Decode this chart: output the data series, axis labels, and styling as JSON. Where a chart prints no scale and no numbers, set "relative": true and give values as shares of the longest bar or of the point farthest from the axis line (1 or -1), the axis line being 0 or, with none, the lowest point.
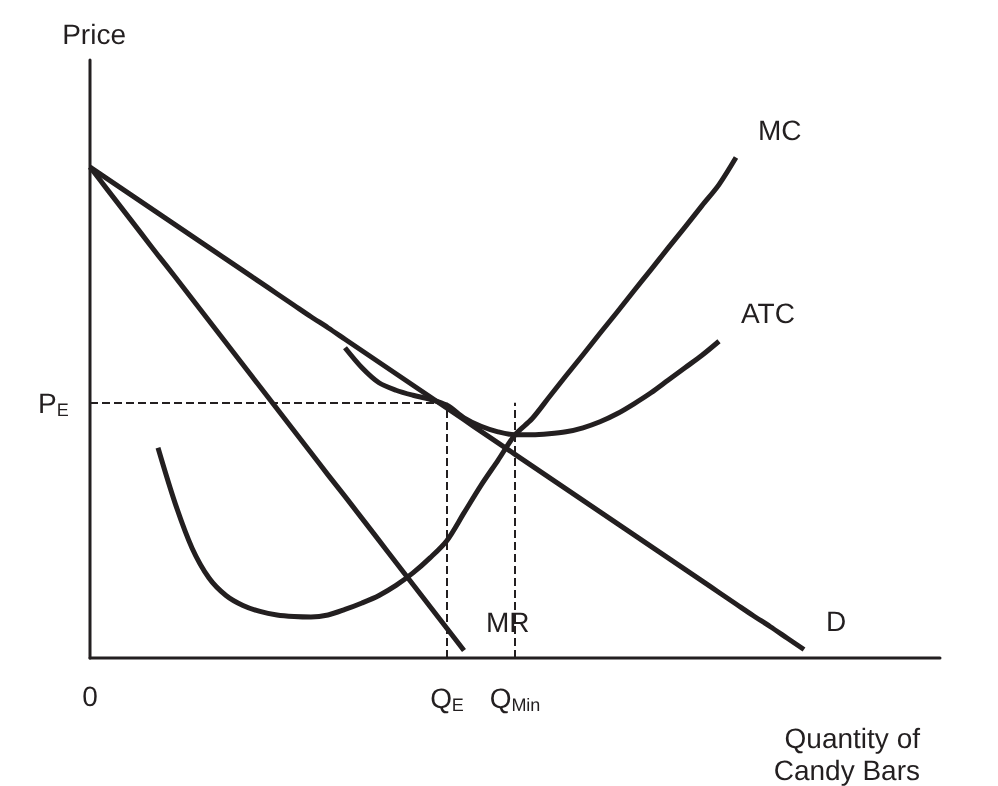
{
  "chart_data": {
    "type": "line",
    "relative": true,
    "ylabel": "Price",
    "xlabel": "Quantity of\nCandy Bars",
    "categories": [
      "0",
      null,
      null,
      null,
      null,
      null,
      null,
      null,
      null,
      null,
      null,
      null,
      null,
      null,
      null,
      null,
      null,
      null,
      null,
      null,
      null,
      "Q$_{E}$",
      null,
      null,
      null,
      "Q$_{Min}$",
      null,
      null,
      null,
      null,
      null,
      null,
      null,
      null,
      null,
      null,
      null,
      null,
      null,
      null,
      null,
      null,
      null,
      null,
      null,
      null,
      null,
      null,
      null,
      null,
      null
    ],
    "series": [
      {
        "name": "MC",
        "color": "#231f20",
        "values": [
          null,
          null,
          null,
          null,
          0.42,
          0.31,
          0.22,
          0.16,
          0.125,
          0.105,
          0.093,
          0.086,
          0.083,
          0.082,
          0.086,
          0.097,
          0.11,
          0.125,
          0.145,
          0.17,
          0.2,
          0.235,
          0.29,
          0.345,
          0.395,
          0.446,
          0.478,
          0.521,
          0.564,
          0.606,
          0.649,
          0.691,
          0.734,
          0.776,
          0.819,
          0.861,
          0.904,
          0.946,
          1.0,
          null,
          null,
          null,
          null,
          null,
          null,
          null,
          null,
          null,
          null,
          null,
          null
        ]
      },
      {
        "name": "ATC",
        "color": "#231f20",
        "values": [
          null,
          null,
          null,
          null,
          null,
          null,
          null,
          null,
          null,
          null,
          null,
          null,
          null,
          null,
          null,
          0.62,
          0.58,
          0.55,
          0.535,
          0.525,
          0.517,
          0.505,
          0.48,
          0.463,
          0.452,
          0.446,
          0.446,
          0.448,
          0.452,
          0.46,
          0.472,
          0.488,
          0.508,
          0.53,
          0.555,
          0.58,
          0.605,
          0.633,
          null,
          null,
          null,
          null,
          null,
          null,
          null,
          null,
          null,
          null,
          null,
          null,
          null
        ]
      },
      {
        "name": "D",
        "color": "#231f20",
        "values": [
          0.981,
          0.958,
          0.935,
          0.912,
          0.889,
          0.866,
          0.843,
          0.82,
          0.797,
          0.774,
          0.751,
          0.728,
          0.705,
          0.682,
          0.66,
          0.637,
          0.614,
          0.591,
          0.568,
          0.545,
          0.522,
          0.499,
          0.476,
          0.453,
          0.43,
          0.407,
          0.384,
          0.361,
          0.338,
          0.315,
          0.292,
          0.269,
          0.246,
          0.223,
          0.2,
          0.177,
          0.154,
          0.131,
          0.108,
          0.085,
          0.063,
          0.04,
          0.017,
          null,
          null,
          null,
          null,
          null,
          null,
          null,
          null
        ]
      },
      {
        "name": "MR",
        "color": "#231f20",
        "values": [
          0.981,
          0.937,
          0.893,
          0.849,
          0.805,
          0.762,
          0.718,
          0.674,
          0.63,
          0.586,
          0.542,
          0.498,
          0.454,
          0.41,
          0.366,
          0.323,
          0.279,
          0.235,
          0.191,
          0.147,
          0.103,
          0.059,
          0.015,
          null,
          null,
          null,
          null,
          null,
          null,
          null,
          null,
          null,
          null,
          null,
          null,
          null,
          null,
          null,
          null,
          null,
          null,
          null,
          null,
          null,
          null,
          null,
          null,
          null,
          null,
          null,
          null
        ]
      }
    ],
    "ref_lines": [
      {
        "axis": "y",
        "value": 0.51,
        "label": "P$_{E}$",
        "line_style": "dashed"
      },
      {
        "axis": "x",
        "value": "Q$_{E}$",
        "line_style": "dashed"
      },
      {
        "axis": "x",
        "value": "Q$_{Min}$",
        "line_style": "dashed"
      }
    ],
    "grid": false,
    "legend": false
  }
}
